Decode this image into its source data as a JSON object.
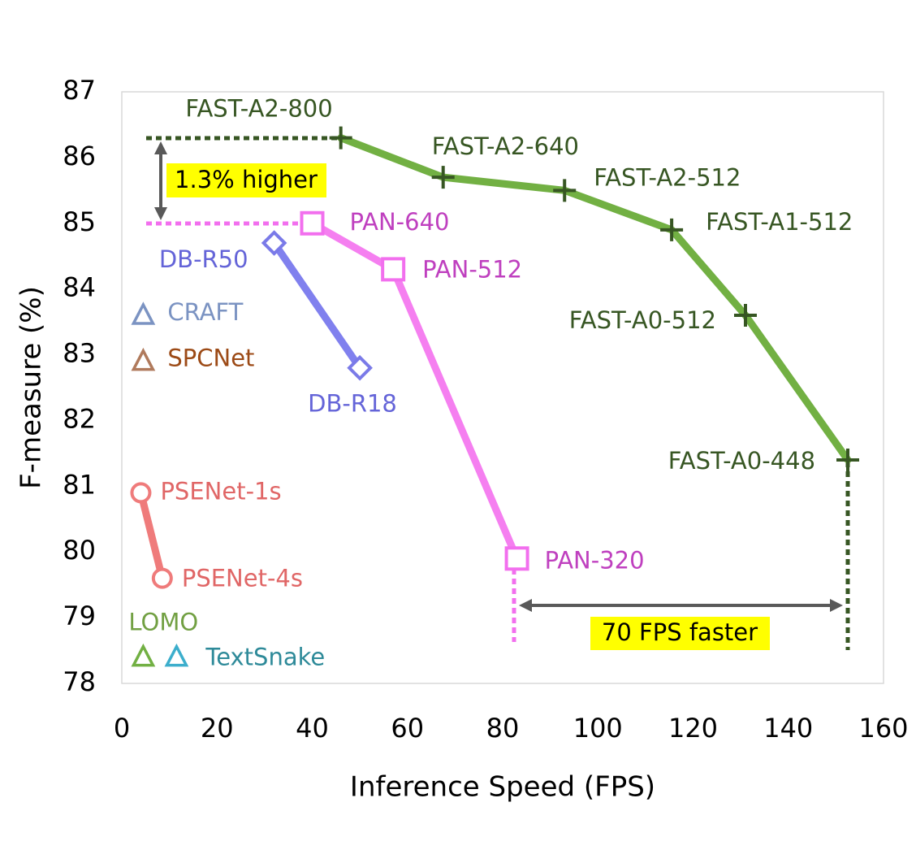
{
  "chart_data": {
    "type": "scatter",
    "xlabel": "Inference Speed (FPS)",
    "ylabel": "F-measure (%)",
    "xlim": [
      0,
      160
    ],
    "ylim": [
      78,
      87
    ],
    "xticks": [
      "0",
      "20",
      "40",
      "60",
      "80",
      "100",
      "120",
      "140",
      "160"
    ],
    "yticks": [
      "78",
      "79",
      "80",
      "81",
      "82",
      "83",
      "84",
      "85",
      "86",
      "87"
    ],
    "grid": false,
    "series": [
      {
        "marker": "plus",
        "connected": true,
        "color": "#72b043",
        "marker_color": "#375623",
        "label_color": "#375623",
        "points": [
          {
            "x": 46,
            "y": 86.3,
            "label": "FAST-A2-800"
          },
          {
            "x": 67.5,
            "y": 85.7,
            "label": "FAST-A2-640"
          },
          {
            "x": 93,
            "y": 85.5,
            "label": "FAST-A2-512"
          },
          {
            "x": 115.5,
            "y": 84.9,
            "label": "FAST-A1-512"
          },
          {
            "x": 131,
            "y": 83.6,
            "label": "FAST-A0-512"
          },
          {
            "x": 152.5,
            "y": 81.4,
            "label": "FAST-A0-448"
          }
        ]
      },
      {
        "marker": "square",
        "connected": true,
        "color": "#f57ff0",
        "marker_color": "#f26fee",
        "label_color": "#bf40bf",
        "points": [
          {
            "x": 40,
            "y": 85.0,
            "label": "PAN-640"
          },
          {
            "x": 57,
            "y": 84.3,
            "label": "PAN-512"
          },
          {
            "x": 83,
            "y": 79.9,
            "label": "PAN-320"
          }
        ]
      },
      {
        "marker": "diamond",
        "connected": true,
        "color": "#8080ee",
        "marker_color": "#7a7ae8",
        "label_color": "#6464d8",
        "points": [
          {
            "x": 32,
            "y": 84.7,
            "label": "DB-R50"
          },
          {
            "x": 50,
            "y": 82.8,
            "label": "DB-R18"
          }
        ]
      },
      {
        "marker": "circle",
        "connected": true,
        "color": "#ef7b7b",
        "marker_color": "#ef7b7b",
        "label_color": "#e06666",
        "points": [
          {
            "x": 4,
            "y": 80.9,
            "label": "PSENet-1s"
          },
          {
            "x": 8.5,
            "y": 79.6,
            "label": "PSENet-4s"
          }
        ]
      },
      {
        "marker": "triangle",
        "connected": false,
        "color": "#7b93c2",
        "marker_color": "#7b93c2",
        "label_color": "#7b93c2",
        "points": [
          {
            "x": 4.5,
            "y": 83.6,
            "label": "CRAFT"
          }
        ]
      },
      {
        "marker": "triangle",
        "connected": false,
        "color": "#b07a5c",
        "marker_color": "#b07a5c",
        "label_color": "#9c4a16",
        "points": [
          {
            "x": 4.5,
            "y": 82.9,
            "label": "SPCNet"
          }
        ]
      },
      {
        "marker": "triangle",
        "connected": false,
        "color": "#72b043",
        "marker_color": "#72b043",
        "label_color": "#72a043",
        "points": [
          {
            "x": 4.5,
            "y": 78.4,
            "label": "LOMO"
          }
        ]
      },
      {
        "marker": "triangle",
        "connected": false,
        "color": "#3caecc",
        "marker_color": "#3caecc",
        "label_color": "#2e8a99",
        "points": [
          {
            "x": 11.5,
            "y": 78.4,
            "label": "TextSnake"
          }
        ]
      }
    ],
    "annotations": [
      {
        "text": "1.3% higher",
        "background": "#ffff00"
      },
      {
        "text": "70 FPS faster",
        "background": "#ffff00"
      }
    ]
  }
}
